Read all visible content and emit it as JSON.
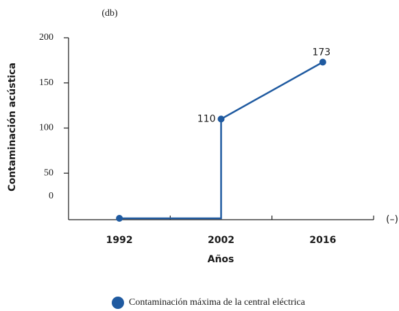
{
  "chart_data": {
    "type": "line",
    "y_unit": "(db)",
    "x_unit": "(–)",
    "x_label": "Años",
    "y_label": "Contaminación acústica",
    "categories": [
      "1992",
      "2002",
      "2016"
    ],
    "series": [
      {
        "name": "Contaminación máxima de la central eléctrica",
        "color": "#1f5aa0",
        "values": [
          0,
          110,
          173
        ]
      }
    ],
    "labeled_points": [
      1,
      2
    ],
    "steps": [
      1
    ],
    "ylim": [
      0,
      200
    ],
    "yticks": [
      0,
      50,
      100,
      150,
      200
    ]
  }
}
